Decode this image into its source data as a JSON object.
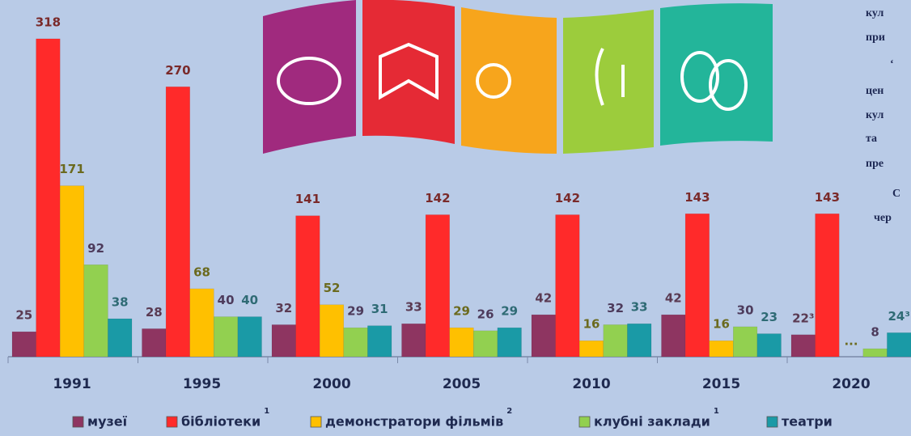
{
  "chart_data": {
    "type": "bar",
    "categories": [
      "1991",
      "1995",
      "2000",
      "2005",
      "2010",
      "2015",
      "2020"
    ],
    "series": [
      {
        "name": "музеї",
        "color": "#8e3561",
        "label_color": "#5a3a52",
        "values": [
          25,
          28,
          32,
          33,
          42,
          42,
          22
        ],
        "value_labels": [
          "25",
          "28",
          "32",
          "33",
          "42",
          "42",
          "22³"
        ]
      },
      {
        "name": "бібліотеки",
        "footnote": "1",
        "color": "#ff2a2a",
        "label_color": "#7a2a2a",
        "values": [
          318,
          270,
          141,
          142,
          142,
          143,
          143
        ]
      },
      {
        "name": "демонстратори фільмів",
        "footnote": "2",
        "color": "#ffc000",
        "label_color": "#6b6a1e",
        "values": [
          171,
          68,
          52,
          29,
          16,
          16,
          null
        ],
        "value_labels": [
          "171",
          "68",
          "52",
          "29",
          "16",
          "16",
          "..."
        ]
      },
      {
        "name": "клубні заклади",
        "footnote": "1",
        "color": "#92d050",
        "label_color": "#4d3b5c",
        "values": [
          92,
          40,
          29,
          26,
          32,
          30,
          8
        ]
      },
      {
        "name": "театри",
        "color": "#1a9aa6",
        "label_color": "#2f6b75",
        "values": [
          38,
          40,
          31,
          29,
          33,
          23,
          24
        ],
        "value_labels": [
          "38",
          "40",
          "31",
          "29",
          "33",
          "23",
          "24³"
        ]
      }
    ]
  },
  "side_text": [
    "кул",
    "при",
    "‘",
    "цен",
    "кул",
    "та",
    "пре",
    "С",
    "чер"
  ]
}
